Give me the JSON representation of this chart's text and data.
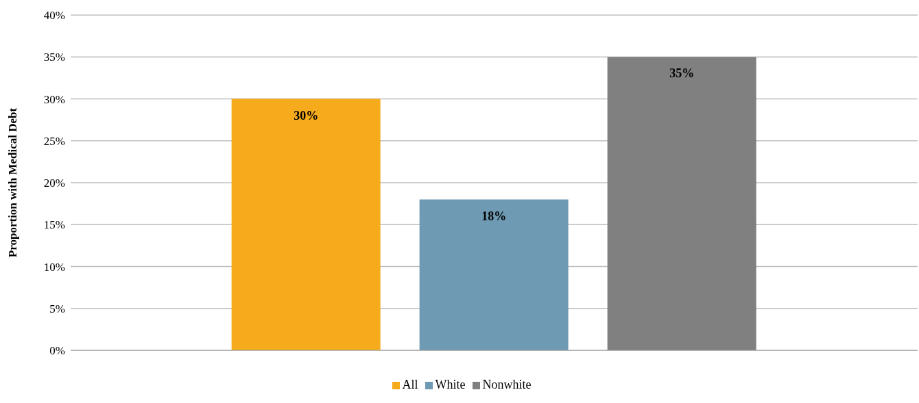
{
  "chart_data": {
    "type": "bar",
    "ylabel": "Proportion with Medical Debt",
    "categories": [
      null
    ],
    "series": [
      {
        "name": "All",
        "color": "#f5ab1b",
        "values": [
          30
        ],
        "value_labels": [
          "30%"
        ]
      },
      {
        "name": "White",
        "color": "#6f9ab3",
        "values": [
          18
        ],
        "value_labels": [
          "18%"
        ]
      },
      {
        "name": "Nonwhite",
        "color": "#808080",
        "values": [
          35
        ],
        "value_labels": [
          "35%"
        ]
      }
    ],
    "ylim": [
      0,
      40
    ],
    "yticks": [
      {
        "value": 0,
        "label": "0%"
      },
      {
        "value": 5,
        "label": "5%"
      },
      {
        "value": 10,
        "label": "10%"
      },
      {
        "value": 15,
        "label": "15%"
      },
      {
        "value": 20,
        "label": "20%"
      },
      {
        "value": 25,
        "label": "25%"
      },
      {
        "value": 30,
        "label": "30%"
      },
      {
        "value": 35,
        "label": "35%"
      },
      {
        "value": 40,
        "label": "40%"
      }
    ],
    "grid": "y",
    "legend": "bottom"
  }
}
